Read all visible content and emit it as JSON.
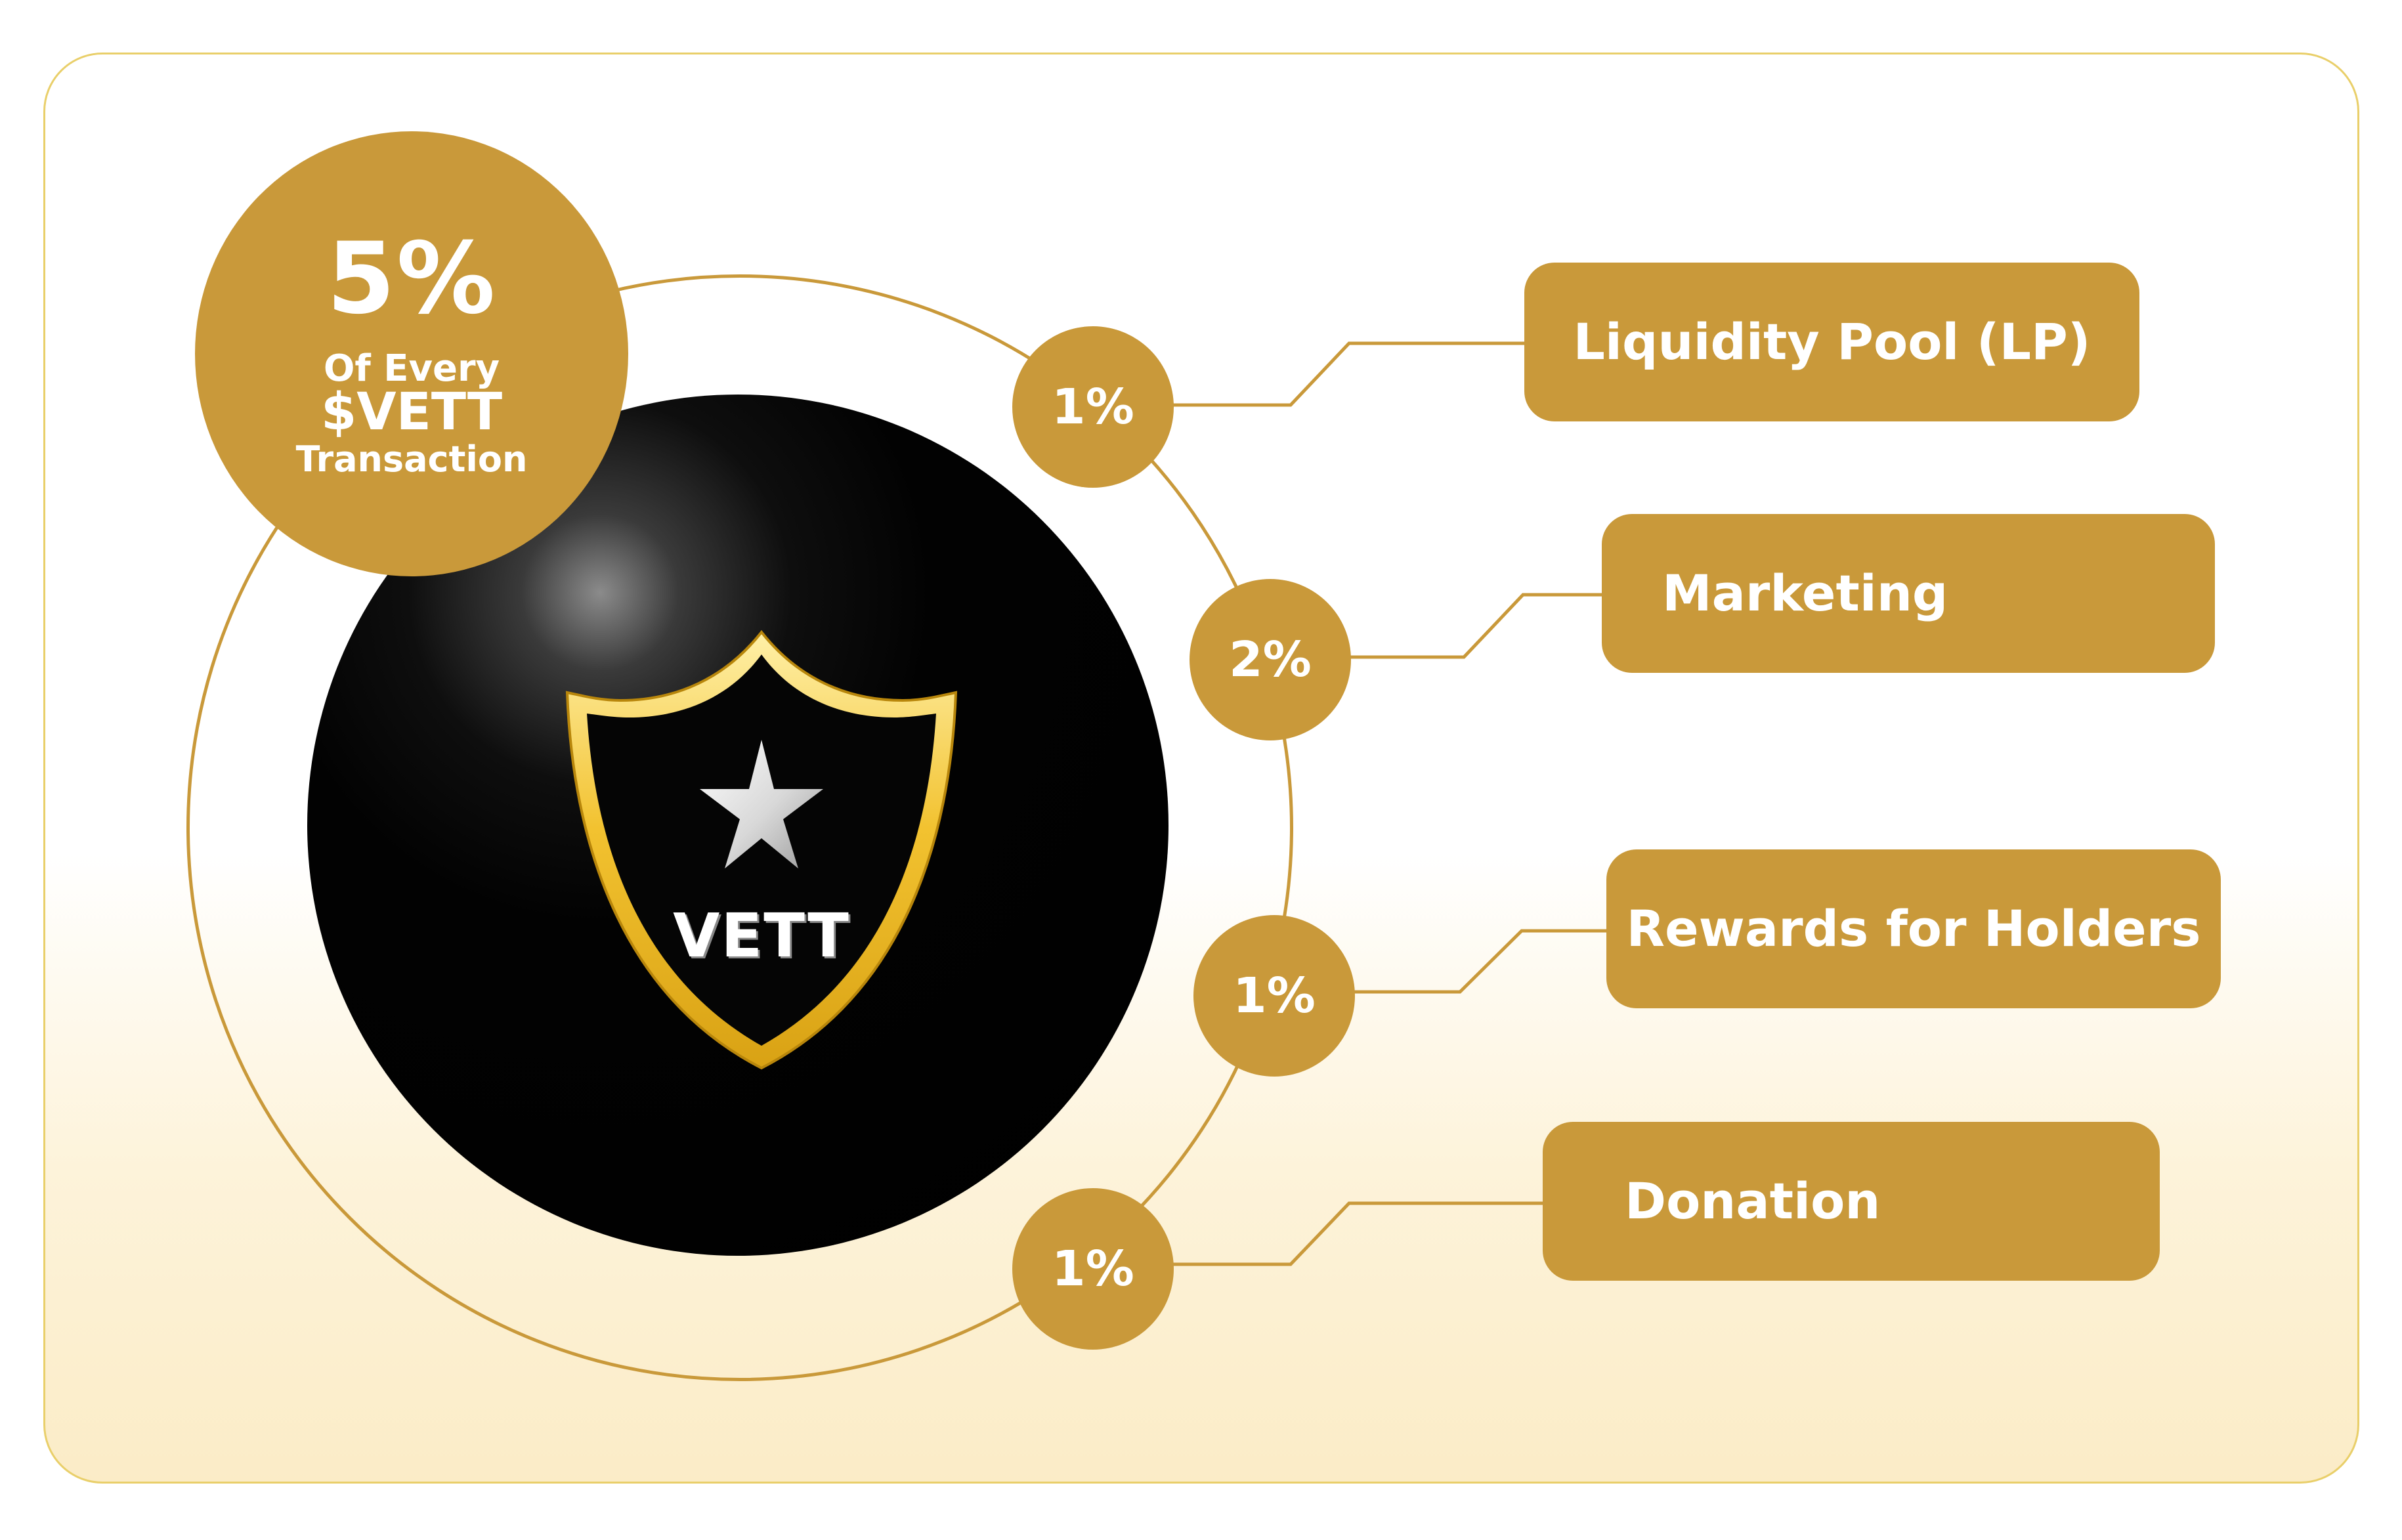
{
  "colors": {
    "gold": "#c9993a",
    "card_border": "#e9cf6a",
    "sphere": "#000000",
    "text_on_gold": "#ffffff"
  },
  "summary": {
    "percent": "5%",
    "line1": "Of Every",
    "line2": "$VETT",
    "line3": "Transaction"
  },
  "logo": {
    "text": "VETT",
    "icon": "shield-star-icon"
  },
  "allocations": [
    {
      "percent": "1%",
      "label": "Liquidity Pool (LP)"
    },
    {
      "percent": "2%",
      "label": "Marketing"
    },
    {
      "percent": "1%",
      "label": "Rewards for Holders"
    },
    {
      "percent": "1%",
      "label": "Donation"
    }
  ]
}
